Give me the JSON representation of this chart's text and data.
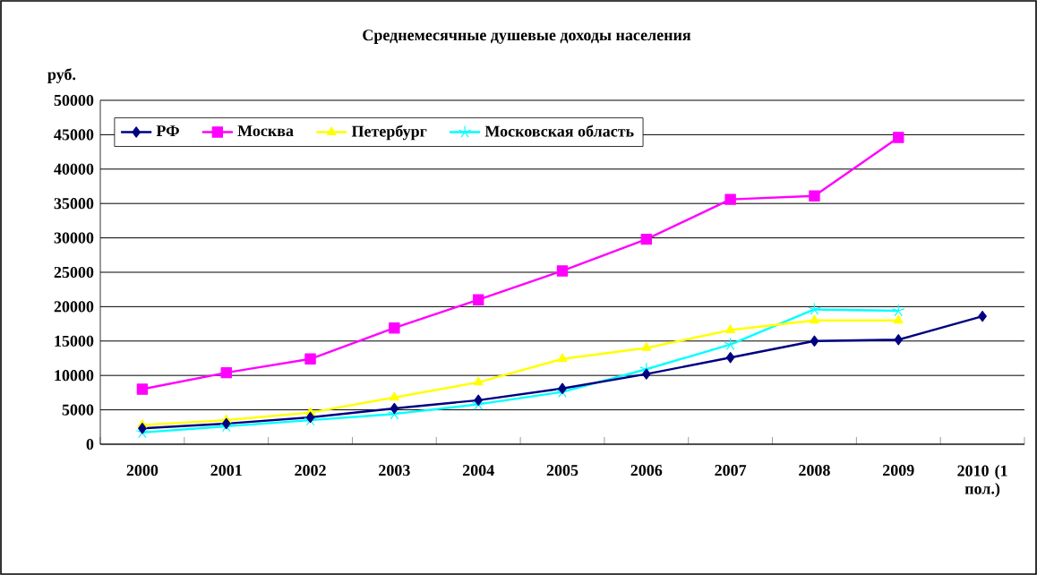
{
  "chart_data": {
    "type": "line",
    "title": "Среднемесячные душевые доходы населения",
    "ylabel": "руб.",
    "categories": [
      "2000",
      "2001",
      "2002",
      "2003",
      "2004",
      "2005",
      "2006",
      "2007",
      "2008",
      "2009",
      "2010 (1 пол.)"
    ],
    "series": [
      {
        "name": "РФ",
        "color": "#000080",
        "marker": "diamond",
        "values": [
          2300,
          3000,
          3900,
          5200,
          6400,
          8100,
          10200,
          12600,
          15000,
          15200,
          18600
        ]
      },
      {
        "name": "Москва",
        "color": "#ff00ff",
        "marker": "square",
        "values": [
          8000,
          10400,
          12400,
          16900,
          21000,
          25200,
          29800,
          35600,
          36100,
          44600,
          null
        ]
      },
      {
        "name": "Петербург",
        "color": "#ffff00",
        "marker": "triangle",
        "values": [
          2800,
          3500,
          4600,
          6800,
          9000,
          12400,
          14000,
          16600,
          18000,
          18000,
          null
        ]
      },
      {
        "name": "Московская область",
        "color": "#00ffff",
        "marker": "cross",
        "values": [
          1700,
          2600,
          3500,
          4400,
          5800,
          7600,
          10900,
          14500,
          19600,
          19400,
          null
        ]
      }
    ],
    "ylim": [
      0,
      50000
    ],
    "yticks": [
      0,
      5000,
      10000,
      15000,
      20000,
      25000,
      30000,
      35000,
      40000,
      45000,
      50000
    ],
    "grid": "y",
    "legend": "top"
  }
}
